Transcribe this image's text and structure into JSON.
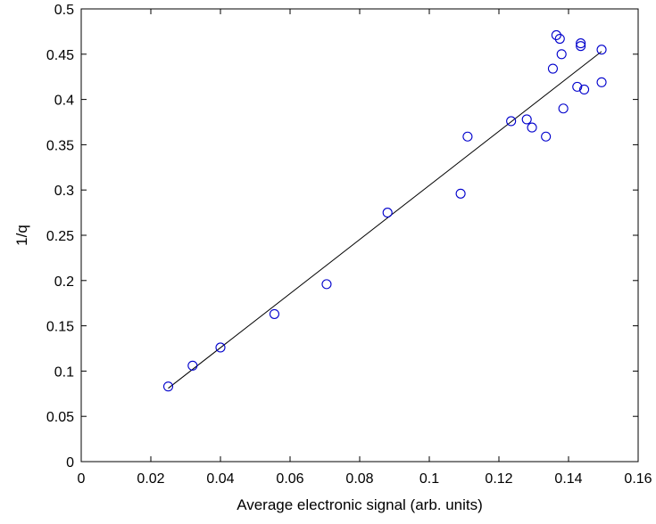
{
  "chart_data": {
    "type": "scatter",
    "title": "",
    "xlabel": "Average electronic signal (arb. units)",
    "ylabel": "1/q",
    "xlim": [
      0,
      0.16
    ],
    "ylim": [
      0,
      0.5
    ],
    "grid": false,
    "legend": "none",
    "x_ticks": [
      "0",
      "0.02",
      "0.04",
      "0.06",
      "0.08",
      "0.1",
      "0.12",
      "0.14",
      "0.16"
    ],
    "y_ticks": [
      "0",
      "0.05",
      "0.1",
      "0.15",
      "0.2",
      "0.25",
      "0.3",
      "0.35",
      "0.4",
      "0.45",
      "0.5"
    ],
    "marker_color": "#0000cc",
    "fit_color": "#000000",
    "series": [
      {
        "points": [
          [
            0.025,
            0.083
          ],
          [
            0.032,
            0.106
          ],
          [
            0.04,
            0.126
          ],
          [
            0.0555,
            0.163
          ],
          [
            0.0705,
            0.196
          ],
          [
            0.088,
            0.275
          ],
          [
            0.109,
            0.296
          ],
          [
            0.111,
            0.359
          ],
          [
            0.1235,
            0.376
          ],
          [
            0.128,
            0.378
          ],
          [
            0.1295,
            0.369
          ],
          [
            0.1335,
            0.359
          ],
          [
            0.1355,
            0.434
          ],
          [
            0.1365,
            0.471
          ],
          [
            0.1375,
            0.467
          ],
          [
            0.138,
            0.45
          ],
          [
            0.1385,
            0.39
          ],
          [
            0.1425,
            0.414
          ],
          [
            0.1435,
            0.462
          ],
          [
            0.1435,
            0.459
          ],
          [
            0.1445,
            0.411
          ],
          [
            0.1495,
            0.455
          ],
          [
            0.1495,
            0.419
          ]
        ]
      }
    ],
    "fit_line": {
      "x": [
        0.025,
        0.1495
      ],
      "y": [
        0.081,
        0.453
      ]
    }
  }
}
